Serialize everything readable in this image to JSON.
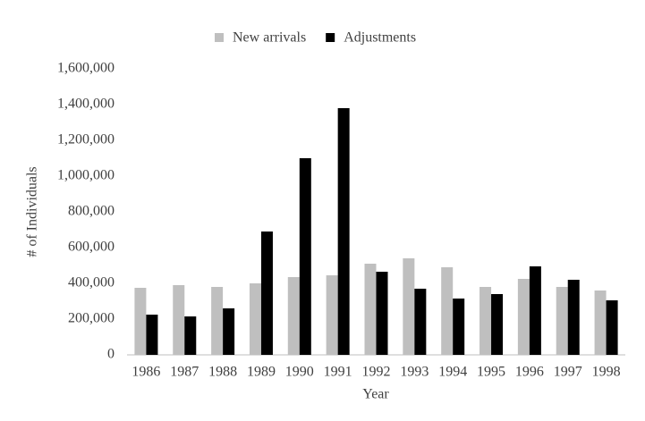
{
  "chart_data": {
    "type": "bar",
    "x_label": "Year",
    "y_label": "# of Individuals",
    "categories": [
      "1986",
      "1987",
      "1988",
      "1989",
      "1990",
      "1991",
      "1992",
      "1993",
      "1994",
      "1995",
      "1996",
      "1997",
      "1998"
    ],
    "series": [
      {
        "name": "New arrivals",
        "color": "#bfbfbf",
        "values": [
          375000,
          390000,
          380000,
          400000,
          435000,
          445000,
          510000,
          540000,
          490000,
          380000,
          425000,
          380000,
          360000
        ]
      },
      {
        "name": "Adjustments",
        "color": "#000000",
        "values": [
          225000,
          215000,
          260000,
          690000,
          1100000,
          1380000,
          465000,
          370000,
          315000,
          340000,
          495000,
          420000,
          305000
        ]
      }
    ],
    "ylim": [
      0,
      1600000
    ],
    "yticks": [
      0,
      {
        "value": 200000,
        "label": "200,000"
      },
      {
        "value": 400000,
        "label": "400,000"
      },
      {
        "value": 600000,
        "label": "600,000"
      },
      {
        "value": 800000,
        "label": "800,000"
      },
      {
        "value": 1000000,
        "label": "1,000,000"
      },
      {
        "value": 1200000,
        "label": "1,200,000"
      },
      {
        "value": 1400000,
        "label": "1,400,000"
      },
      {
        "value": 1600000,
        "label": "1,600,000"
      }
    ],
    "legend": "top"
  }
}
